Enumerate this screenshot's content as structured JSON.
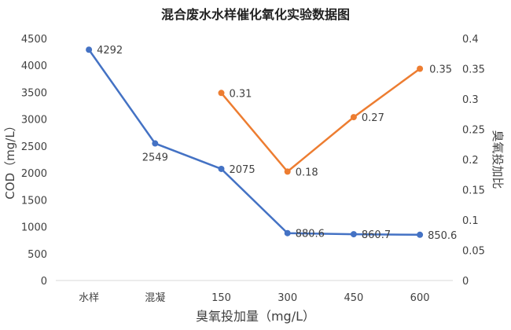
{
  "chart_data": {
    "type": "line",
    "title": "混合废水水样催化氧化实验数据图",
    "xlabel": "臭氧投加量（mg/L）",
    "ylabel": "COD（mg/L）",
    "y2label": "臭氧投加比",
    "categories": [
      "水样",
      "混凝",
      "150",
      "300",
      "450",
      "600"
    ],
    "ylim": [
      0,
      4500
    ],
    "yticks": [
      "0",
      "500",
      "1000",
      "1500",
      "2000",
      "2500",
      "3000",
      "3500",
      "4000",
      "4500"
    ],
    "y2lim": [
      0,
      0.4
    ],
    "y2ticks": [
      "0",
      "0.05",
      "0.1",
      "0.15",
      "0.2",
      "0.25",
      "0.3",
      "0.35",
      "0.4"
    ],
    "grid": false,
    "series": [
      {
        "axis": "left",
        "color": "#4472C4",
        "values": [
          4292,
          2549,
          2075,
          880.6,
          860.7,
          850.6
        ],
        "labels": [
          "4292",
          "2549",
          "2075",
          "880.6",
          "860.7",
          "850.6"
        ]
      },
      {
        "axis": "right",
        "color": "#ED7D31",
        "values": [
          null,
          null,
          0.31,
          0.18,
          0.27,
          0.35
        ],
        "labels": [
          "",
          "",
          "0.31",
          "0.18",
          "0.27",
          "0.35"
        ]
      }
    ]
  }
}
